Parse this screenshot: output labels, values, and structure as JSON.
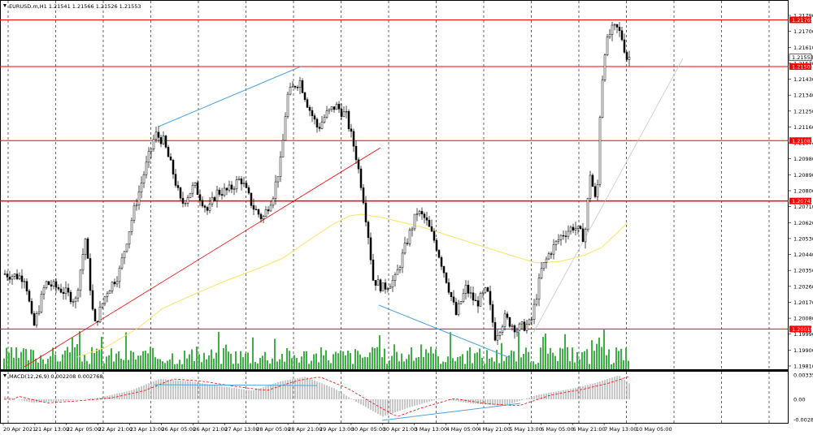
{
  "header": {
    "symbol_info": "EURUSD.m,H1  1.21541  1.21566  1.21526  1.21553",
    "macd_label": "MACD(12,26,9) 0.002208 0.002768"
  },
  "price_axis": {
    "labels": [
      "1.21790",
      "1.21700",
      "1.21610",
      "1.21520",
      "1.21430",
      "1.21340",
      "1.21250",
      "1.21160",
      "1.21070",
      "1.20980",
      "1.20890",
      "1.20800",
      "1.20710",
      "1.20620",
      "1.20530",
      "1.20440",
      "1.20350",
      "1.20260",
      "1.20170",
      "1.20080",
      "1.19990",
      "1.19900",
      "1.19810"
    ],
    "values": [
      1.2179,
      1.217,
      1.2161,
      1.2152,
      1.2143,
      1.2134,
      1.2125,
      1.2116,
      1.2107,
      1.2098,
      1.2089,
      1.208,
      1.2071,
      1.2062,
      1.2053,
      1.2044,
      1.2035,
      1.2026,
      1.2017,
      1.2008,
      1.1999,
      1.199,
      1.1981
    ]
  },
  "level_tags": [
    {
      "label": "1.21765",
      "value": 1.21765
    },
    {
      "label": "1.21501",
      "value": 1.21501
    },
    {
      "label": "1.21083",
      "value": 1.21083
    },
    {
      "label": "1.20742",
      "value": 1.20742
    },
    {
      "label": "1.20019",
      "value": 1.20019
    }
  ],
  "current_price": {
    "label": "1.21553",
    "value": 1.21553
  },
  "macd_axis": {
    "labels": [
      "0.003353",
      "0.00",
      "-0.002805"
    ],
    "values": [
      0.003353,
      0.0,
      -0.002805
    ]
  },
  "time_axis": {
    "labels": [
      "20 Apr 2021",
      "21 Apr 13:00",
      "22 Apr 05:00",
      "22 Apr 21:00",
      "23 Apr 13:00",
      "26 Apr 05:00",
      "26 Apr 21:00",
      "27 Apr 13:00",
      "28 Apr 05:00",
      "28 Apr 21:00",
      "29 Apr 13:00",
      "30 Apr 05:00",
      "30 Apr 21:00",
      "3 May 13:00",
      "4 May 05:00",
      "4 May 21:00",
      "5 May 13:00",
      "6 May 05:00",
      "6 May 21:00",
      "7 May 13:00",
      "10 May 05:00"
    ]
  },
  "colors": {
    "level_line": "#ff0000",
    "ma_line": "#ffe066",
    "volume_bars": "#3cb043",
    "trend_blue": "#4aa3df",
    "macd_hist": "#b0b0b0",
    "macd_signal": "#ff0000"
  }
}
